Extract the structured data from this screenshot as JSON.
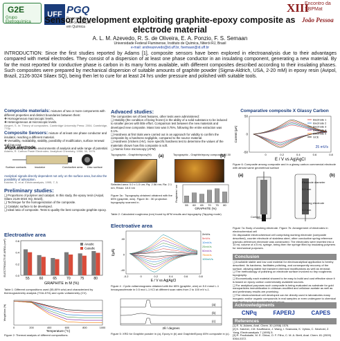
{
  "header": {
    "g2e": "G2E",
    "g2e_sub": "Grupo Eletroquímica",
    "uff": "UFF",
    "pgq": "PGQ",
    "pgq_sub": "Programa de Pós-Graduação em Química",
    "sbpmat_num": "XIII",
    "sbpmat_event": "Encontro da SBPMat",
    "sbpmat_city": "João Pessoa"
  },
  "title": "Sensor development exploiting graphite-epoxy composite as electrode material",
  "authors": "A. L. M. Azevedo, R. S. de Oliveira, E. A. Ponzio, F. S. Semaan",
  "affiliation": "Universidade Federal Fluminense, Instituto de Química, Niterói RJ, Brasil",
  "email": "e-mail: andreazevedo@id.uff.br, fsemaan@id.uff.br",
  "intro": "INTRODUCTION: Since the first studies reported by Adams [1], composite sensors have been explored in electroanalysis due to their advantages compared with metal electrodes. They consist of a dispersion of at least one phase conductor in an insulating component, generating a new material. By far the most reported for conductive phase is carbon in its many forms available, with different composites described according to their insulating phases. Such composites were prepared by mechanical dispersion of suitable amounts of graphite powder (Sigma-Aldrich, USA, 2-20 mM) in epoxy resin (Avipol, Brazil, 2126-3024 Silaex SQ), being then let to cure for at least 24 hrs under pressure and polished with suitable tools.",
  "left": {
    "composite_head": "Composite materials:",
    "composite_text": "mixtures of two or more components with different properties and distinct boundaries between them:",
    "bullets": [
      "Homogeneous macroscopic levels,",
      "Heterogeneous at microscopic levels."
    ],
    "ref1": "Alegret, S. In: Theory of composites. Cambridge University Press: 2004, Cambridge, 770p.",
    "sensors_head": "Composite Sensors:",
    "sensors_text": "mixture of at least one phase conductor and insulator, reaching a different material.",
    "sensors_bullets": [
      "Versatility, moldability, stability, possibility of modification, surface renewal and low cost;",
      "Applicability to diverse environments of analysis and wide range of potential."
    ],
    "ref2": "Adams, R. Carbon Paste Electrodes. Analytical Chemistry, 1958, 30, 1576.",
    "work_electrode": "Work electrode",
    "insulator": "insulator",
    "surface_contacts": "Surface contacts",
    "conductive": "Conductive area",
    "disc": "Disc surface",
    "analytical": "Analytical signals directly dependent not only on the surface area, but also the possibility of adsorption.",
    "ref3": "Kalcher, K. et al. Electroanalysis, 1995, 7, 5.",
    "prelim_head": "Preliminary studies:",
    "prelim": [
      "Proportions of polymer and catalyst. In this study, the epoxy resin (Avipol, Silaex 2126-3024 SQ, Brazil),",
      "Technique for the homogenization of the composite.",
      "Catalytic surface to be developed.",
      "Ideal ratio of composite. Tests to quality the best composite graphite epoxy."
    ],
    "area_head": "Electroative area",
    "table_caption": "Table 1: Different compositions used (55-80% w/w) and characterized by thermogravimetry analysis (TGA-DTA) and cyclic voltammetry (CV).",
    "tga_caption": "Figure 2: Thermal analysis of different compositions."
  },
  "middle": {
    "adv_head": "Advaced studies:",
    "adv_intro": "The composites set of best features, other tests were administered:",
    "adv_bullets": [
      "Stability (the condition of being frozen) is the ability of a solid substance to be induced to smaller pieces with little effort. Comparison test between the new materials and developed new composite. Mass loss was 0.75%, following the entire extraction was 0.1%.",
      "Hardness at first trials were carried out in an approach for validity to confirm the composite by a hardness negligible, compared to the source material.",
      "Hardness (Vickers (HV), more specific hardness test to determine the values of the materials shown how this composite is soft.",
      "Atomic force microscopy (AFM)"
    ],
    "afm_a": "Topographic - Graphite/epoxy(%)",
    "afm_b": "Topographic - Graphite/epoxy composite 80.30",
    "label_a": "(a)",
    "label_b": "(b)",
    "afm_params": "Selected area: 0.0 x 1.0 um; Rq: 2.56 nm; Ra: 2.1 nm; Rmax: 18.0 nm",
    "fig3": "Figure 3a : Topography obtained obtained with the 65% (graphite, w/w). Figure 3b : 3D projection topography scanned in.",
    "bar_xlabel": "GRAPHITE (%)",
    "bar_ylabel": "Roughness / nm",
    "table2": "Table 2: Calculated roughness (nm) found by AFM results and topography (Tapping mode)",
    "area_head": "Electroative area",
    "cv_xlabel": "E / V vs Ag|AgCl",
    "cv_ylabel": "I(µA)",
    "fig4": "Figure 4 : Cyclic voltammograms obtained with the 65% (graphite, w/w) on 5.0 mmol L-1 hexacyanoferrate in 0.5 mol L-1 KCl at different scan rates from 2 to 100 mV s-1.",
    "fig5": "Figure 5: XRD for Graphite powder in (a), Epoxy in (b) and Graphite/Epoxy 65% composite in (c).",
    "xrd_xlabel": "2θ / degrees",
    "xrd_labels": [
      "(a)",
      "(b)",
      "(c)"
    ]
  },
  "right": {
    "cmp_head": "Comparative composite X Glassy Carbon",
    "cv_xlabel": "E / V vs Ag|AgCl",
    "cv_ylabel": "Current (µA)",
    "scan": "25 mV/s",
    "fig6": "Figure 6: Composite among composite and in a glassy carbon commercial electrode with almost same geometrical surface",
    "label_a": "(a)",
    "label_b": "(b)",
    "fig7": "Figure 7a: Body of working electrode. Figure 7b: Arrangement of electrodes in electrochemical cell",
    "design_text": "On disposable electrochemical cell comprising working electrode (composite described), counter electrode of stainless steel, other conductive spring reference (pseudo-reference) electrode was constructed. The electrodes were inserted into a 10 mL volume of a 5 mL syringe, being then the syringe filled by insulating polymers for mechanical purposes.",
    "parts": [
      "Electrode diameter",
      "3.2 mm",
      "Working electrode",
      "3.2 mm",
      "Contact"
    ],
    "concl_head": "Conclusion",
    "conclusions": [
      "A suitable stable and low cost material for electroanalytical application is hereby described. Its hardness, facilitates polishing, and consequently recovery of the surface, allowing stable but transient chemical modifications as well as renewal;",
      "The methodology of polishing on electrode surface involved no tiny roughness topography.",
      "Economically each material showed to be easy to build and cost effective since it is based on epoxy carbon commercially available sources.",
      "For analytical purposes such composite is being evaluated as substrate for gold nanoparticles immobilization in chitosan-modified and cellulose acetate as well as and preliminary results are promising.",
      "The electrochemical cell developed can be directly used in laboratories many inorganic and/or organic compounds in real samples or even undergone to chemical modification to more specialised situations."
    ],
    "ack_head": "Acknowledgments",
    "ack_logos": [
      "CNPq",
      "FAPERJ",
      "CAPES"
    ],
    "refs_head": "References",
    "refs": [
      "[1] R. N. Adams, Anal. Chem. 30 (1958) 1576.",
      "[2] K. Kalcher, J.M. Kauffmann, J. Wang, I. Svancara, K. Vytras, C. Neuhold, Z. Yang, Electroanalysis 7 (1995) 5.",
      "[3] R. Pauliukaite, M. E. Ghica, O. F. Filho, C. M. A. Brett, Anal. Chem. 81 (2009) 5364-5372."
    ]
  },
  "chart_data": [
    {
      "type": "bar",
      "title": "Electroative area",
      "categories": [
        "55",
        "60",
        "65",
        "70",
        "75",
        "80"
      ],
      "series": [
        {
          "name": "Anodic",
          "values": [
            0.45,
            0.35,
            0.3,
            0.4,
            0.38,
            0.42
          ]
        },
        {
          "name": "Catodic",
          "values": [
            0.4,
            0.32,
            0.28,
            0.36,
            0.34,
            0.39
          ]
        }
      ],
      "xlabel": "GRAPHITE in M (%)",
      "ylabel": "ELECTROACTIVE AREA (cm²)",
      "ylim": [
        0.0,
        0.6
      ]
    },
    {
      "type": "bar",
      "categories": [
        "55",
        "60",
        "65",
        "70",
        "75",
        "80"
      ],
      "values": [
        38,
        55,
        48,
        70,
        78,
        60
      ],
      "xlabel": "GRAPHITE (%)",
      "ylabel": "Roughness / nm",
      "ylim": [
        0,
        100
      ]
    },
    {
      "type": "line",
      "xlabel": "Temperature (°C)",
      "ylabel": "Weight loss (%)",
      "x": [
        0,
        200,
        400,
        600,
        800,
        1000
      ],
      "series": [
        {
          "name": "80%",
          "values": [
            100,
            99,
            90,
            82,
            80,
            80
          ]
        },
        {
          "name": "75%",
          "values": [
            100,
            99,
            88,
            78,
            76,
            76
          ]
        },
        {
          "name": "70%",
          "values": [
            100,
            98,
            84,
            72,
            70,
            70
          ]
        },
        {
          "name": "65%",
          "values": [
            100,
            98,
            80,
            67,
            65,
            65
          ]
        },
        {
          "name": "60%",
          "values": [
            100,
            97,
            76,
            62,
            60,
            60
          ]
        },
        {
          "name": "55%",
          "values": [
            100,
            97,
            72,
            57,
            55,
            55
          ]
        }
      ]
    },
    {
      "type": "line",
      "xlabel": "E / V vs Ag|AgCl",
      "ylabel": "I(µA)",
      "xlim": [
        -0.2,
        0.8
      ],
      "ylim": [
        -50,
        60
      ],
      "series_labels": [
        "2mV/s",
        "5mV/s",
        "10mV/s",
        "25mV/s",
        "50mV/s",
        "75mV/s",
        "100mV/s"
      ]
    },
    {
      "type": "line",
      "xlabel": "E / V vs Ag|AgCl",
      "ylabel": "Current (µA)",
      "xlim": [
        -0.2,
        0.8
      ],
      "ylim": [
        -50,
        50
      ],
      "series_labels": [
        "Electrode 1",
        "Electrode 2",
        "Electrode 3",
        "Electrode 4",
        "Electrode 5",
        "GCE"
      ]
    }
  ]
}
